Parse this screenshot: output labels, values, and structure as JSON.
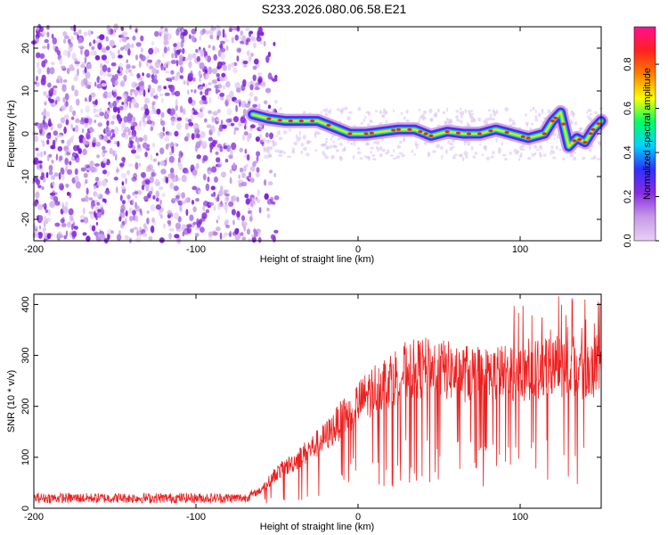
{
  "title": "S233.2026.080.06.58.E21",
  "chart_data": [
    {
      "type": "heatmap",
      "xlabel": "Height of straight line (km)",
      "ylabel": "Frequency (Hz)",
      "xlim": [
        -200,
        150
      ],
      "ylim": [
        -25,
        25
      ],
      "x_ticks": [
        -200,
        -100,
        0,
        100
      ],
      "y_ticks": [
        -20,
        -10,
        0,
        10,
        20
      ],
      "noise_region_x": [
        -200,
        -60
      ],
      "ridge": {
        "x": [
          -65,
          -55,
          -45,
          -35,
          -25,
          -15,
          -5,
          5,
          15,
          25,
          35,
          45,
          55,
          65,
          75,
          85,
          95,
          105,
          115,
          120,
          125,
          130,
          135,
          140,
          145,
          150
        ],
        "y": [
          4.5,
          3.5,
          3,
          3,
          3,
          1.5,
          0,
          0,
          0.5,
          1,
          1,
          -0.5,
          0.5,
          0,
          0,
          1,
          0,
          -1,
          0,
          3,
          5,
          -3,
          -1,
          -2,
          1,
          3
        ]
      },
      "colorbar": {
        "label": "Normalized spectral amplitude",
        "ticks": [
          0.0,
          0.2,
          0.4,
          0.6,
          0.8
        ],
        "range": [
          0,
          0.97
        ],
        "colors": [
          "#e8d0f4",
          "#c89ae8",
          "#8a2be2",
          "#3030ff",
          "#00d4ff",
          "#00ff60",
          "#ffff00",
          "#ff8000",
          "#ff2020",
          "#ff1090"
        ]
      }
    },
    {
      "type": "line",
      "xlabel": "Height of straight line (km)",
      "ylabel": "SNR (10 * v/v)",
      "xlim": [
        -200,
        150
      ],
      "ylim": [
        0,
        420
      ],
      "x_ticks": [
        -200,
        -100,
        0,
        100
      ],
      "y_ticks": [
        0,
        100,
        200,
        300,
        400
      ],
      "color": "#ee2020",
      "series": [
        {
          "x": [
            -200,
            -180,
            -160,
            -140,
            -120,
            -100,
            -80,
            -70,
            -60,
            -50,
            -40,
            -30,
            -20,
            -10,
            0,
            10,
            20,
            30,
            40,
            50,
            60,
            70,
            80,
            90,
            100,
            110,
            120,
            130,
            140,
            150
          ],
          "values": [
            20,
            20,
            20,
            20,
            20,
            20,
            20,
            20,
            35,
            70,
            90,
            115,
            140,
            175,
            205,
            235,
            255,
            270,
            275,
            275,
            265,
            265,
            260,
            265,
            270,
            270,
            275,
            280,
            270,
            280
          ]
        }
      ]
    }
  ]
}
